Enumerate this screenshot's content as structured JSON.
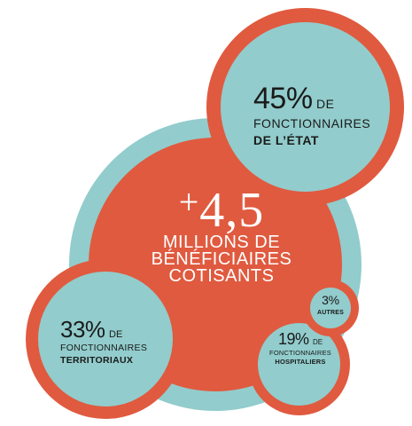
{
  "total": {
    "sign": "+",
    "value": "4,5",
    "label_line1": "MILLIONS DE",
    "label_line2": "BÉNÉFICIAIRES",
    "label_line3": "COTISANTS"
  },
  "segments": [
    {
      "id": "etat",
      "percent": "45",
      "unit": "%",
      "de": "DE",
      "line1": "FONCTIONNAIRES",
      "line2": "DE L’ÉTAT"
    },
    {
      "id": "territoriaux",
      "percent": "33",
      "unit": "%",
      "de": "DE",
      "line1": "FONCTIONNAIRES",
      "line2": "TERRITORIAUX"
    },
    {
      "id": "hospitaliers",
      "percent": "19",
      "unit": "%",
      "de": "DE",
      "line1": "FONCTIONNAIRES",
      "line2": "HOSPITALIERS"
    },
    {
      "id": "autres",
      "percent": "3",
      "unit": "%",
      "line1": "AUTRES"
    }
  ],
  "colors": {
    "red": "#e05a3f",
    "teal": "#92cccc",
    "text_dark": "#1a1a1a",
    "text_light": "#ffffff"
  }
}
